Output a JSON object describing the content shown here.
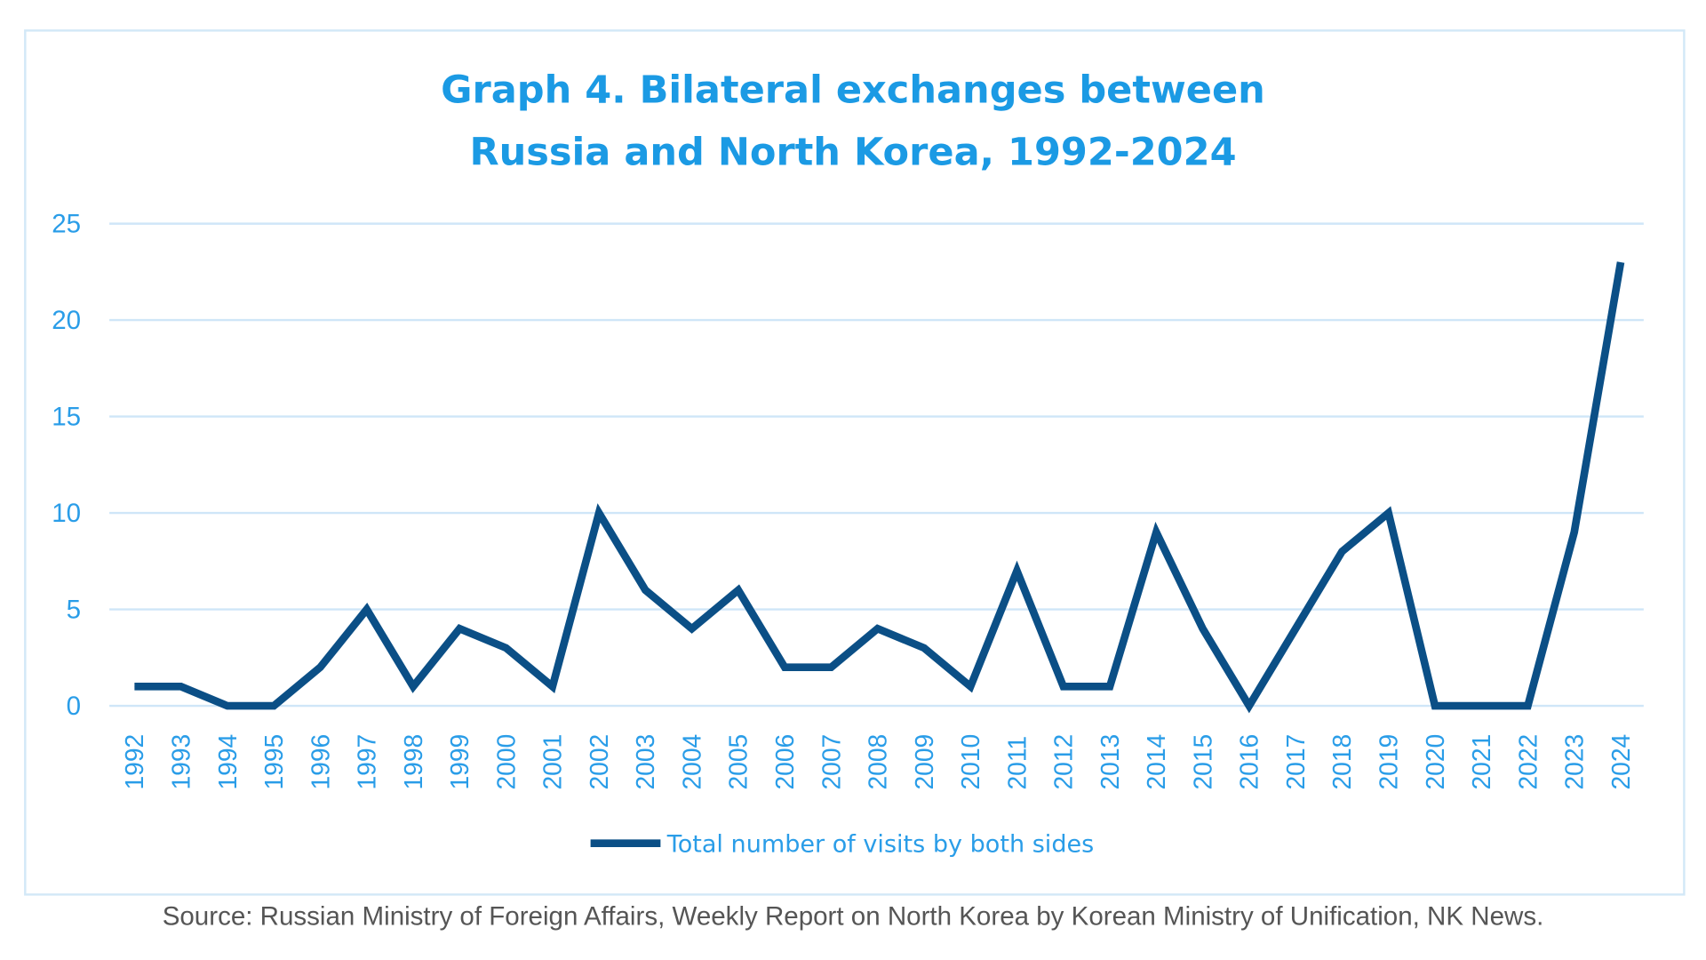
{
  "chart_data": {
    "type": "line",
    "title": [
      "Graph 4. Bilateral exchanges between",
      "Russia and North Korea, 1992-2024"
    ],
    "xlabel": "",
    "ylabel": "",
    "ylim": [
      0,
      25
    ],
    "yticks": [
      "0",
      "5",
      "10",
      "15",
      "20",
      "25"
    ],
    "grid": true,
    "legend_position": "bottom-center",
    "x": [
      "1992",
      "1993",
      "1994",
      "1995",
      "1996",
      "1997",
      "1998",
      "1999",
      "2000",
      "2001",
      "2002",
      "2003",
      "2004",
      "2005",
      "2006",
      "2007",
      "2008",
      "2009",
      "2010",
      "2011",
      "2012",
      "2013",
      "2014",
      "2015",
      "2016",
      "2017",
      "2018",
      "2019",
      "2020",
      "2021",
      "2022",
      "2023",
      "2024"
    ],
    "series": [
      {
        "name": "Total number of visits by both sides",
        "color": "#0b4f86",
        "values": [
          1,
          1,
          0,
          0,
          2,
          5,
          1,
          4,
          3,
          1,
          10,
          6,
          4,
          6,
          2,
          2,
          4,
          3,
          1,
          7,
          1,
          1,
          9,
          4,
          0,
          4,
          8,
          10,
          0,
          0,
          0,
          9,
          23
        ]
      }
    ],
    "source": "Source: Russian Ministry of Foreign Affairs, Weekly Report on North Korea by Korean Ministry of Unification, NK News."
  }
}
